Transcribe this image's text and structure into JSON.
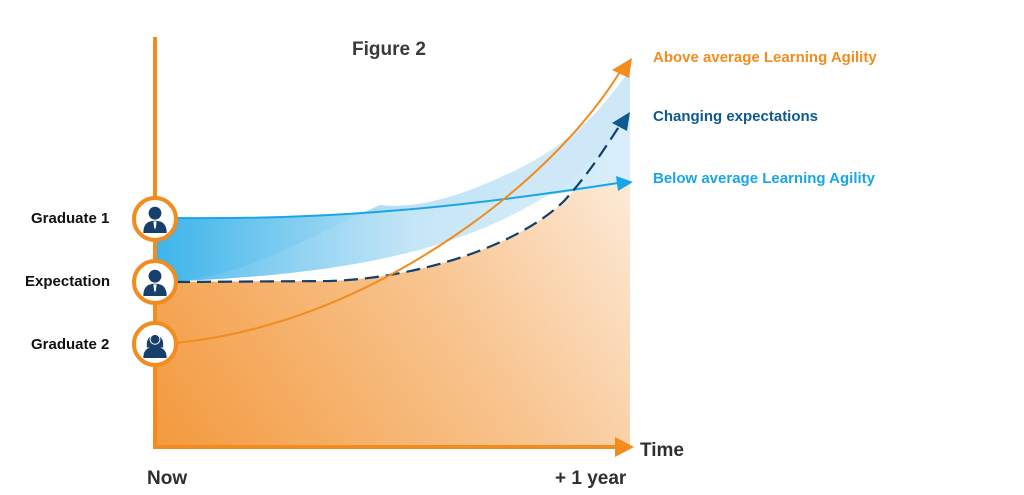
{
  "title": "Figure 2",
  "people": [
    {
      "label": "Graduate 1",
      "icon": "male-user-icon"
    },
    {
      "label": "Expectation",
      "icon": "male-user-icon"
    },
    {
      "label": "Graduate 2",
      "icon": "female-user-icon"
    }
  ],
  "legend": {
    "above": "Above average Learning Agility",
    "changing": "Changing expectations",
    "below": "Below average Learning Agility"
  },
  "axes": {
    "x_label": "Time",
    "x_start": "Now",
    "x_end": "+ 1 year"
  },
  "colors": {
    "orange": "#f28c1e",
    "dark_blue": "#0e5a8f",
    "light_blue": "#1aa6e4",
    "icon_blue": "#173f6b"
  }
}
